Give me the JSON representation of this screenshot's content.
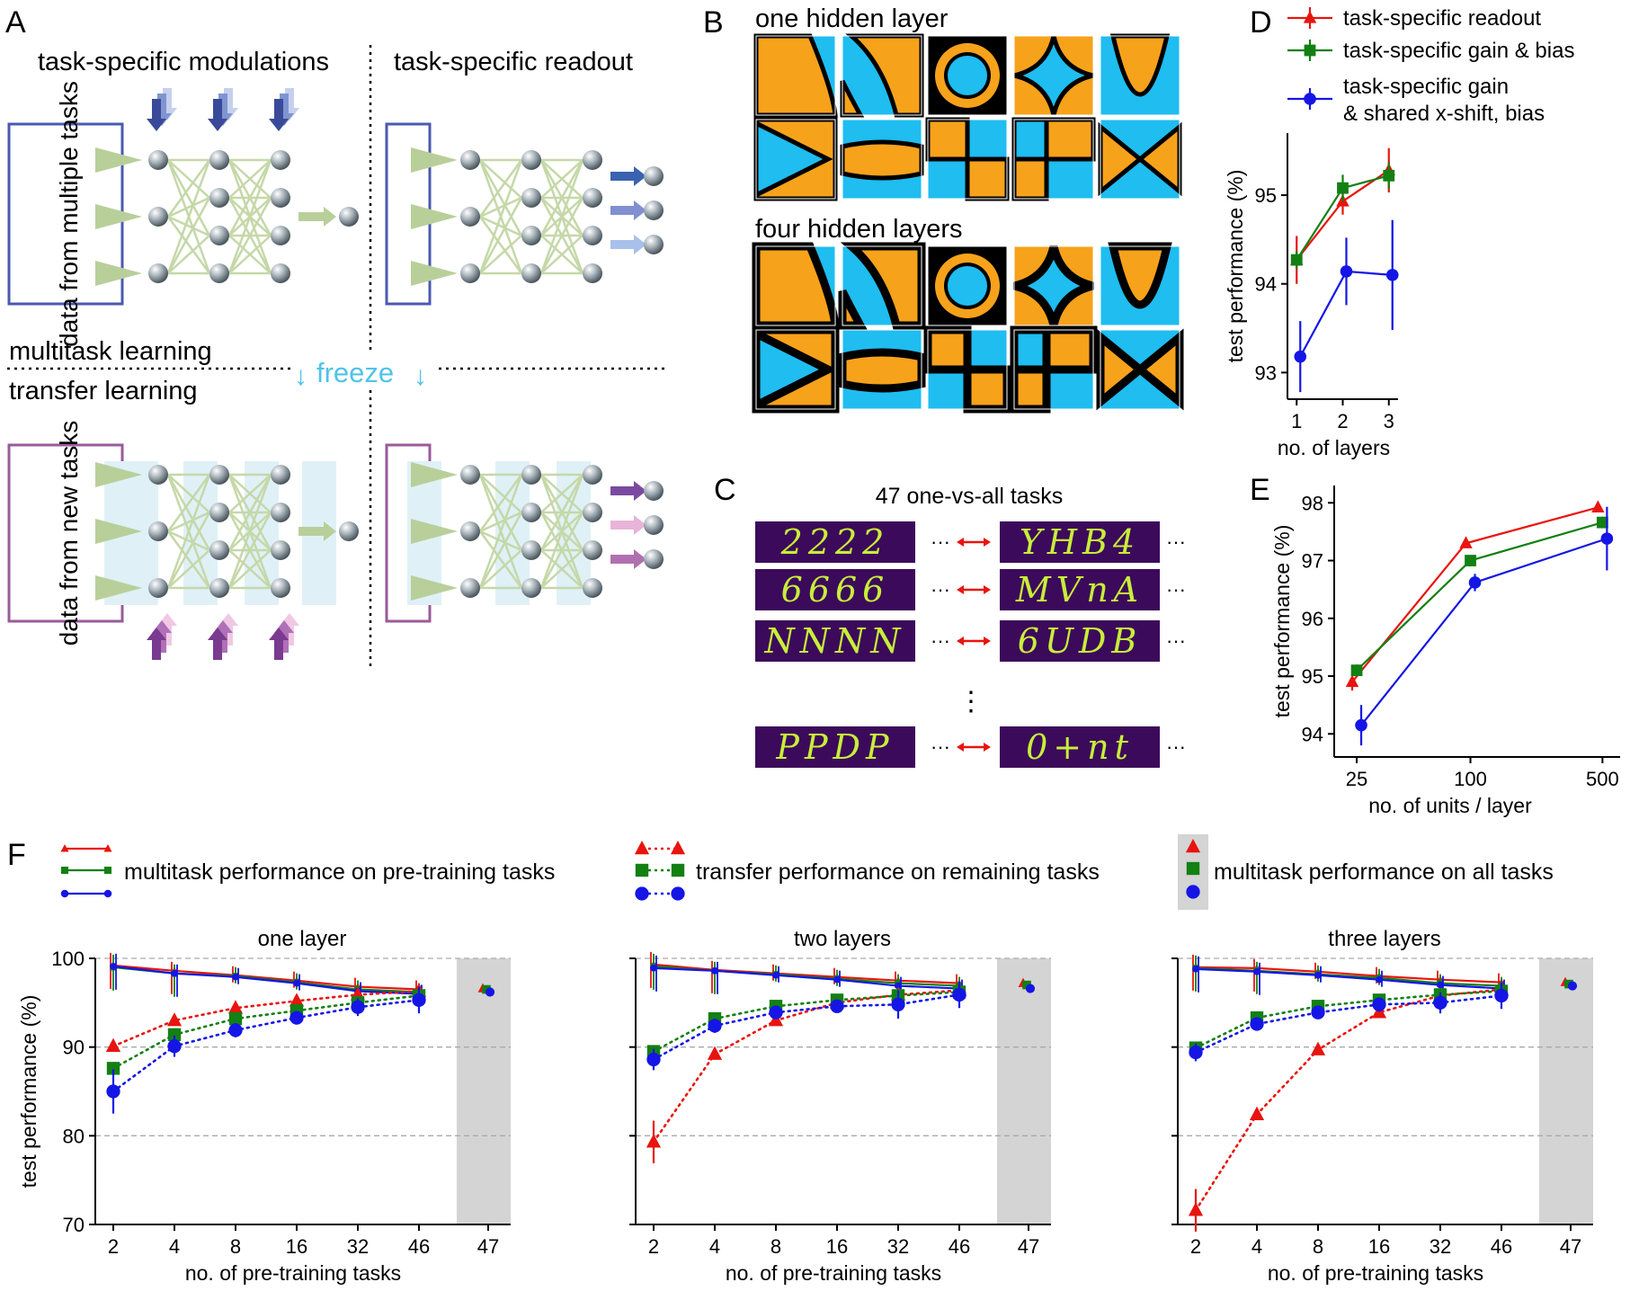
{
  "figure": {
    "panel_letters": [
      "A",
      "B",
      "C",
      "D",
      "E",
      "F"
    ],
    "colors": {
      "red": "#e8140f",
      "green": "#128012",
      "blue": "#1515e6",
      "orange": "#f7a21b",
      "cyan": "#1fbdf0",
      "purple": "#3c0a5a",
      "freeze": "#4fc3e8",
      "panel_blue": "#4a5ab0",
      "panel_purple": "#9a5a9a"
    }
  },
  "panel_a": {
    "modulations_label": "task-specific modulations",
    "readout_label": "task-specific readout",
    "data_multiple_label": "data from multiple tasks",
    "data_new_label": "data from new tasks",
    "multitask_label": "multitask learning",
    "transfer_label": "transfer learning",
    "freeze_label": "freeze"
  },
  "panel_b": {
    "one_layer_title": "one hidden layer",
    "four_layer_title": "four hidden layers"
  },
  "panel_c": {
    "title": "47 one-vs-all tasks",
    "rows": [
      {
        "left": "2222",
        "right": "YHB4"
      },
      {
        "left": "6666",
        "right": "MVnA"
      },
      {
        "left": "NNNN",
        "right": "6UDB"
      },
      {
        "left": "PPDP",
        "right": "0+nt"
      }
    ],
    "ellipsis": "···",
    "vertical_ellipsis": "⋮"
  },
  "chart_data": [
    {
      "panel": "D",
      "type": "line",
      "xlabel": "no. of layers",
      "ylabel": "test performance (%)",
      "x": [
        1,
        2,
        3
      ],
      "xticks": [
        "1",
        "2",
        "3"
      ],
      "yticks": [
        "93",
        "94",
        "95"
      ],
      "ylim": [
        92.7,
        95.7
      ],
      "series": [
        {
          "name": "task-specific readout",
          "marker": "triangle",
          "color": "#e8140f",
          "values": [
            94.27,
            94.93,
            95.28
          ],
          "err": [
            0.27,
            0.15,
            0.25
          ]
        },
        {
          "name": "task-specific gain & bias",
          "marker": "square",
          "color": "#128012",
          "values": [
            94.27,
            95.08,
            95.22
          ],
          "err": [
            0.1,
            0.15,
            0.15
          ]
        },
        {
          "name": "task-specific gain & shared x-shift, bias",
          "marker": "circle",
          "color": "#1515e6",
          "values": [
            93.18,
            94.14,
            94.1
          ],
          "err": [
            0.4,
            0.38,
            0.62
          ]
        }
      ],
      "legend": [
        "task-specific readout",
        "task-specific gain & bias",
        "task-specific gain",
        "& shared x-shift, bias"
      ]
    },
    {
      "panel": "E",
      "type": "line",
      "xlabel": "no. of units / layer",
      "ylabel": "test performance (%)",
      "x": [
        25,
        100,
        500
      ],
      "xticks": [
        "25",
        "100",
        "500"
      ],
      "yticks": [
        "94",
        "95",
        "96",
        "97",
        "98"
      ],
      "ylim": [
        93.6,
        98.3
      ],
      "series": [
        {
          "name": "task-specific readout",
          "marker": "triangle",
          "color": "#e8140f",
          "values": [
            94.9,
            97.3,
            97.92
          ],
          "err": [
            0.15,
            0.05,
            0.05
          ]
        },
        {
          "name": "task-specific gain & bias",
          "marker": "square",
          "color": "#128012",
          "values": [
            95.1,
            97.0,
            97.66
          ],
          "err": [
            0.1,
            0.05,
            0.1
          ]
        },
        {
          "name": "task-specific gain & shared x-shift, bias",
          "marker": "circle",
          "color": "#1515e6",
          "values": [
            94.15,
            96.62,
            97.38
          ],
          "err": [
            0.35,
            0.15,
            0.55
          ]
        }
      ]
    },
    {
      "panel": "F",
      "type": "line",
      "xlabel": "no. of pre-training tasks",
      "ylabel": "test performance (%)",
      "xticks": [
        "2",
        "4",
        "8",
        "16",
        "32",
        "46",
        "47"
      ],
      "yticks": [
        "70",
        "80",
        "90",
        "100"
      ],
      "ylim": [
        70,
        100
      ],
      "legend": {
        "pretrain": "multitask performance on pre-training tasks",
        "transfer": "transfer performance on remaining tasks",
        "all": "multitask performance on all tasks"
      },
      "subplots": [
        {
          "title": "one layer",
          "multitask": {
            "red": [
              99.2,
              98.6,
              98.1,
              97.5,
              96.8,
              96.5
            ],
            "green": [
              99.0,
              98.3,
              98.0,
              97.3,
              96.5,
              96.2
            ],
            "blue": [
              99.1,
              98.3,
              97.9,
              97.2,
              96.3,
              96.0
            ]
          },
          "transfer": {
            "red": [
              90.1,
              93.0,
              94.4,
              95.2,
              95.9,
              96.3
            ],
            "green": [
              87.6,
              91.4,
              93.2,
              94.1,
              95.0,
              95.8
            ],
            "blue": [
              85.0,
              90.1,
              91.9,
              93.3,
              94.5,
              95.3
            ]
          },
          "transfer_err": {
            "blue": [
              2.5,
              1.2,
              0.8,
              0.6,
              1.0,
              1.5
            ]
          },
          "all": {
            "red": 96.6,
            "green": 96.5,
            "blue": 96.2
          }
        },
        {
          "title": "two layers",
          "multitask": {
            "red": [
              99.3,
              98.7,
              98.3,
              97.9,
              97.5,
              97.2
            ],
            "green": [
              99.1,
              98.6,
              98.2,
              97.7,
              97.2,
              96.9
            ],
            "blue": [
              98.9,
              98.6,
              98.1,
              97.6,
              96.9,
              96.6
            ]
          },
          "transfer": {
            "red": [
              79.3,
              89.2,
              93.0,
              95.0,
              95.9,
              96.4
            ],
            "green": [
              89.5,
              93.2,
              94.6,
              95.3,
              95.8,
              96.2
            ],
            "blue": [
              88.6,
              92.4,
              93.9,
              94.6,
              94.8,
              95.9
            ]
          },
          "transfer_err": {
            "blue": [
              1.2,
              0.8,
              0.6,
              0.7,
              1.6,
              1.5
            ]
          },
          "all": {
            "red": 97.2,
            "green": 97.0,
            "blue": 96.6
          }
        },
        {
          "title": "three layers",
          "multitask": {
            "red": [
              99.0,
              98.9,
              98.5,
              98.0,
              97.6,
              97.3
            ],
            "green": [
              98.9,
              98.6,
              98.2,
              97.8,
              97.2,
              96.9
            ],
            "blue": [
              98.8,
              98.5,
              98.1,
              97.6,
              97.0,
              96.6
            ]
          },
          "transfer": {
            "red": [
              71.6,
              82.4,
              89.7,
              93.9,
              95.8,
              96.5
            ],
            "green": [
              89.9,
              93.3,
              94.6,
              95.3,
              95.9,
              96.3
            ],
            "blue": [
              89.4,
              92.6,
              93.9,
              94.8,
              95.0,
              95.8
            ]
          },
          "transfer_err": {
            "blue": [
              1.0,
              0.7,
              0.6,
              0.8,
              1.2,
              1.5
            ]
          },
          "all": {
            "red": 97.3,
            "green": 97.1,
            "blue": 96.9
          }
        }
      ]
    }
  ]
}
